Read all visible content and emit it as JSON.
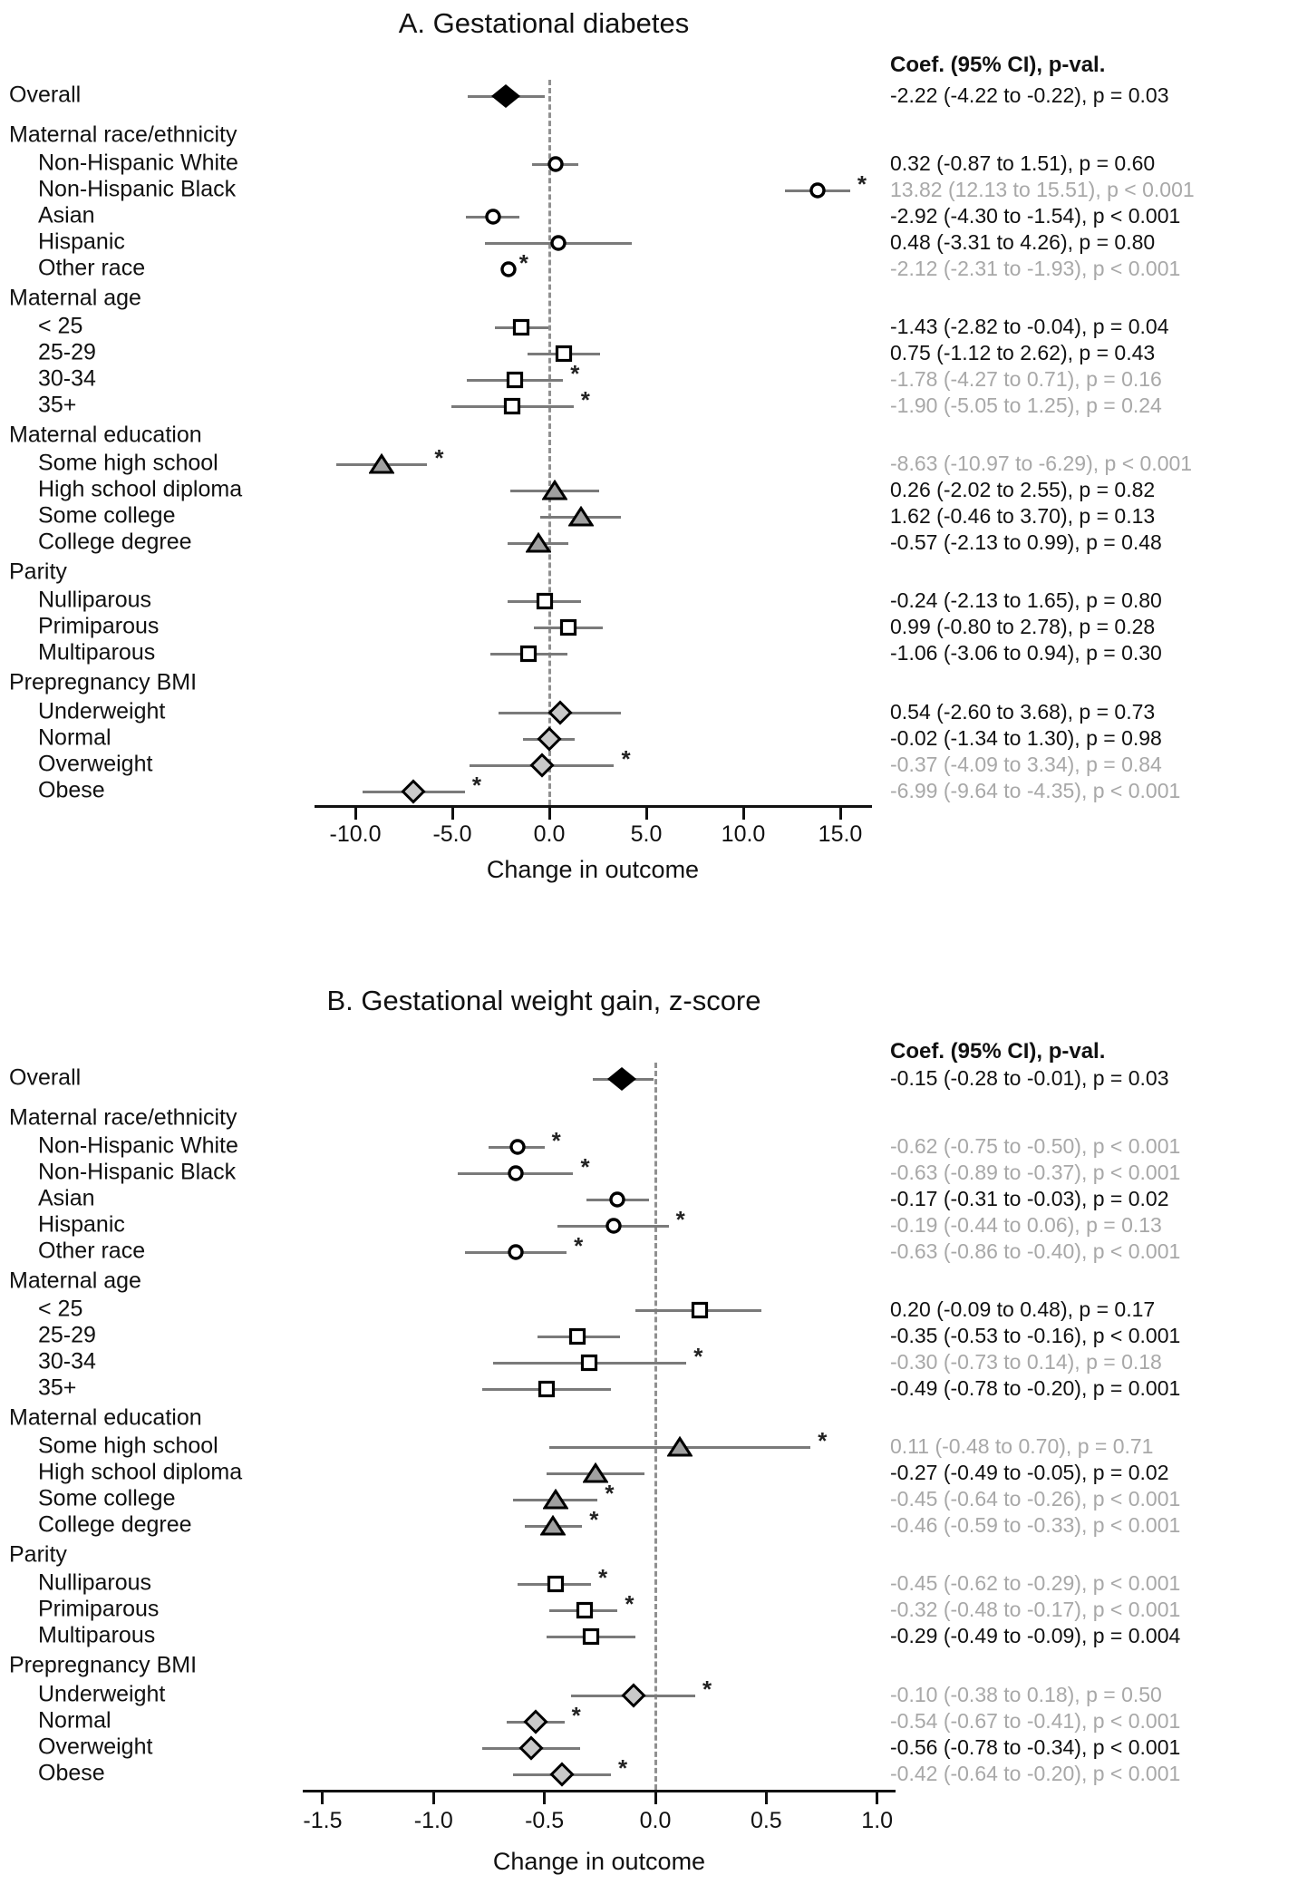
{
  "figure": {
    "background": "#ffffff",
    "colors": {
      "text": "#111111",
      "muted_text": "#a8a8a8",
      "ci_line": "#7a7a7a",
      "marker_stroke": "#000000",
      "circle_fill": "#ffffff",
      "square_fill": "#ffffff",
      "triangle_fill": "#a0a0a0",
      "diamond_fill": "#c9c9c9",
      "overall_diamond_fill": "#000000",
      "zero_line": "#909090",
      "axis": "#111111"
    }
  },
  "chart_data": {
    "type": "scatter",
    "subtype": "forest-plot",
    "legend_position": "none",
    "grid": false,
    "panels": [
      {
        "title": "A. Gestational diabetes",
        "column_header": "Coef. (95% CI), p-val.",
        "xlabel": "Change in outcome",
        "xlim": [
          -14.77,
          16.64
        ],
        "zero_reference": 0,
        "x_ticks": [
          -10,
          -5,
          0,
          5,
          10,
          15
        ],
        "x_tick_labels": [
          "-10.0",
          "-5.0",
          "0.0",
          "5.0",
          "10.0",
          "15.0"
        ],
        "rows": [
          {
            "label": "Overall",
            "kind": "item",
            "indent": 0,
            "marker": "diamond-filled",
            "coef": -2.22,
            "lo": -4.22,
            "hi": -0.22,
            "text": "-2.22 (-4.22 to -0.22), p = 0.03",
            "muted": false,
            "star": false
          },
          {
            "label": "Maternal race/ethnicity",
            "kind": "header"
          },
          {
            "label": "Non-Hispanic White",
            "kind": "item",
            "indent": 1,
            "marker": "circle",
            "coef": 0.32,
            "lo": -0.87,
            "hi": 1.51,
            "text": "0.32 (-0.87 to 1.51), p = 0.60",
            "muted": false,
            "star": false
          },
          {
            "label": "Non-Hispanic Black",
            "kind": "item",
            "indent": 1,
            "marker": "circle",
            "coef": 13.82,
            "lo": 12.13,
            "hi": 15.51,
            "text": "13.82 (12.13 to 15.51), p < 0.001",
            "muted": true,
            "star": true
          },
          {
            "label": "Asian",
            "kind": "item",
            "indent": 1,
            "marker": "circle",
            "coef": -2.92,
            "lo": -4.3,
            "hi": -1.54,
            "text": "-2.92 (-4.30 to -1.54), p < 0.001",
            "muted": false,
            "star": false
          },
          {
            "label": "Hispanic",
            "kind": "item",
            "indent": 1,
            "marker": "circle",
            "coef": 0.48,
            "lo": -3.31,
            "hi": 4.26,
            "text": "0.48 (-3.31 to 4.26), p = 0.80",
            "muted": false,
            "star": false
          },
          {
            "label": "Other race",
            "kind": "item",
            "indent": 1,
            "marker": "circle",
            "coef": -2.12,
            "lo": -2.31,
            "hi": -1.93,
            "text": "-2.12 (-2.31 to -1.93), p < 0.001",
            "muted": true,
            "star": true
          },
          {
            "label": "Maternal age",
            "kind": "header"
          },
          {
            "label": "< 25",
            "kind": "item",
            "indent": 1,
            "marker": "square",
            "coef": -1.43,
            "lo": -2.82,
            "hi": -0.04,
            "text": "-1.43 (-2.82 to -0.04), p = 0.04",
            "muted": false,
            "star": false
          },
          {
            "label": "25-29",
            "kind": "item",
            "indent": 1,
            "marker": "square",
            "coef": 0.75,
            "lo": -1.12,
            "hi": 2.62,
            "text": "0.75 (-1.12 to 2.62), p = 0.43",
            "muted": false,
            "star": false
          },
          {
            "label": "30-34",
            "kind": "item",
            "indent": 1,
            "marker": "square",
            "coef": -1.78,
            "lo": -4.27,
            "hi": 0.71,
            "text": "-1.78 (-4.27 to 0.71), p = 0.16",
            "muted": true,
            "star": true
          },
          {
            "label": "35+",
            "kind": "item",
            "indent": 1,
            "marker": "square",
            "coef": -1.9,
            "lo": -5.05,
            "hi": 1.25,
            "text": "-1.90 (-5.05 to 1.25), p = 0.24",
            "muted": true,
            "star": true
          },
          {
            "label": "Maternal education",
            "kind": "header"
          },
          {
            "label": "Some high school",
            "kind": "item",
            "indent": 1,
            "marker": "triangle",
            "coef": -8.63,
            "lo": -10.97,
            "hi": -6.29,
            "text": "-8.63 (-10.97 to -6.29), p < 0.001",
            "muted": true,
            "star": true
          },
          {
            "label": "High school diploma",
            "kind": "item",
            "indent": 1,
            "marker": "triangle",
            "coef": 0.26,
            "lo": -2.02,
            "hi": 2.55,
            "text": "0.26 (-2.02 to 2.55), p = 0.82",
            "muted": false,
            "star": false
          },
          {
            "label": "Some college",
            "kind": "item",
            "indent": 1,
            "marker": "triangle",
            "coef": 1.62,
            "lo": -0.46,
            "hi": 3.7,
            "text": "1.62 (-0.46 to 3.70), p = 0.13",
            "muted": false,
            "star": false
          },
          {
            "label": "College degree",
            "kind": "item",
            "indent": 1,
            "marker": "triangle",
            "coef": -0.57,
            "lo": -2.13,
            "hi": 0.99,
            "text": "-0.57 (-2.13 to 0.99), p = 0.48",
            "muted": false,
            "star": false
          },
          {
            "label": "Parity",
            "kind": "header"
          },
          {
            "label": "Nulliparous",
            "kind": "item",
            "indent": 1,
            "marker": "square",
            "coef": -0.24,
            "lo": -2.13,
            "hi": 1.65,
            "text": "-0.24 (-2.13 to 1.65), p = 0.80",
            "muted": false,
            "star": false
          },
          {
            "label": "Primiparous",
            "kind": "item",
            "indent": 1,
            "marker": "square",
            "coef": 0.99,
            "lo": -0.8,
            "hi": 2.78,
            "text": "0.99 (-0.80 to 2.78), p = 0.28",
            "muted": false,
            "star": false
          },
          {
            "label": "Multiparous",
            "kind": "item",
            "indent": 1,
            "marker": "square",
            "coef": -1.06,
            "lo": -3.06,
            "hi": 0.94,
            "text": "-1.06 (-3.06 to 0.94), p = 0.30",
            "muted": false,
            "star": false
          },
          {
            "label": "Prepregnancy BMI",
            "kind": "header"
          },
          {
            "label": "Underweight",
            "kind": "item",
            "indent": 1,
            "marker": "diamond",
            "coef": 0.54,
            "lo": -2.6,
            "hi": 3.68,
            "text": "0.54 (-2.60 to 3.68), p = 0.73",
            "muted": false,
            "star": false
          },
          {
            "label": "Normal",
            "kind": "item",
            "indent": 1,
            "marker": "diamond",
            "coef": -0.02,
            "lo": -1.34,
            "hi": 1.3,
            "text": "-0.02 (-1.34 to 1.30), p = 0.98",
            "muted": false,
            "star": false
          },
          {
            "label": "Overweight",
            "kind": "item",
            "indent": 1,
            "marker": "diamond",
            "coef": -0.37,
            "lo": -4.09,
            "hi": 3.34,
            "text": "-0.37 (-4.09 to 3.34), p = 0.84",
            "muted": true,
            "star": true
          },
          {
            "label": "Obese",
            "kind": "item",
            "indent": 1,
            "marker": "diamond",
            "coef": -6.99,
            "lo": -9.64,
            "hi": -4.35,
            "text": "-6.99 (-9.64 to -4.35), p < 0.001",
            "muted": true,
            "star": true
          }
        ]
      },
      {
        "title": "B. Gestational weight gain, z-score",
        "column_header": "Coef. (95% CI), p-val.",
        "xlabel": "Change in outcome",
        "xlim": [
          -1.59,
          1.08
        ],
        "zero_reference": 0,
        "x_ticks": [
          -1.5,
          -1.0,
          -0.5,
          0.0,
          0.5,
          1.0
        ],
        "x_tick_labels": [
          "-1.5",
          "-1.0",
          "-0.5",
          "0.0",
          "0.5",
          "1.0"
        ],
        "rows": [
          {
            "label": "Overall",
            "kind": "item",
            "indent": 0,
            "marker": "diamond-filled",
            "coef": -0.15,
            "lo": -0.28,
            "hi": -0.01,
            "text": "-0.15 (-0.28 to -0.01), p = 0.03",
            "muted": false,
            "star": false
          },
          {
            "label": "Maternal race/ethnicity",
            "kind": "header"
          },
          {
            "label": "Non-Hispanic White",
            "kind": "item",
            "indent": 1,
            "marker": "circle",
            "coef": -0.62,
            "lo": -0.75,
            "hi": -0.5,
            "text": "-0.62 (-0.75 to -0.50), p < 0.001",
            "muted": true,
            "star": true
          },
          {
            "label": "Non-Hispanic Black",
            "kind": "item",
            "indent": 1,
            "marker": "circle",
            "coef": -0.63,
            "lo": -0.89,
            "hi": -0.37,
            "text": "-0.63 (-0.89 to -0.37), p < 0.001",
            "muted": true,
            "star": true
          },
          {
            "label": "Asian",
            "kind": "item",
            "indent": 1,
            "marker": "circle",
            "coef": -0.17,
            "lo": -0.31,
            "hi": -0.03,
            "text": "-0.17 (-0.31 to -0.03), p = 0.02",
            "muted": false,
            "star": false
          },
          {
            "label": "Hispanic",
            "kind": "item",
            "indent": 1,
            "marker": "circle",
            "coef": -0.19,
            "lo": -0.44,
            "hi": 0.06,
            "text": "-0.19 (-0.44 to 0.06), p = 0.13",
            "muted": true,
            "star": true
          },
          {
            "label": "Other race",
            "kind": "item",
            "indent": 1,
            "marker": "circle",
            "coef": -0.63,
            "lo": -0.86,
            "hi": -0.4,
            "text": "-0.63 (-0.86 to -0.40), p < 0.001",
            "muted": true,
            "star": true
          },
          {
            "label": "Maternal age",
            "kind": "header"
          },
          {
            "label": "< 25",
            "kind": "item",
            "indent": 1,
            "marker": "square",
            "coef": 0.2,
            "lo": -0.09,
            "hi": 0.48,
            "text": "0.20 (-0.09 to 0.48), p = 0.17",
            "muted": false,
            "star": false
          },
          {
            "label": "25-29",
            "kind": "item",
            "indent": 1,
            "marker": "square",
            "coef": -0.35,
            "lo": -0.53,
            "hi": -0.16,
            "text": "-0.35 (-0.53 to -0.16), p < 0.001",
            "muted": false,
            "star": false
          },
          {
            "label": "30-34",
            "kind": "item",
            "indent": 1,
            "marker": "square",
            "coef": -0.3,
            "lo": -0.73,
            "hi": 0.14,
            "text": "-0.30 (-0.73 to 0.14), p = 0.18",
            "muted": true,
            "star": true
          },
          {
            "label": "35+",
            "kind": "item",
            "indent": 1,
            "marker": "square",
            "coef": -0.49,
            "lo": -0.78,
            "hi": -0.2,
            "text": "-0.49 (-0.78 to -0.20), p = 0.001",
            "muted": false,
            "star": false
          },
          {
            "label": "Maternal education",
            "kind": "header"
          },
          {
            "label": "Some high school",
            "kind": "item",
            "indent": 1,
            "marker": "triangle",
            "coef": 0.11,
            "lo": -0.48,
            "hi": 0.7,
            "text": "0.11 (-0.48 to 0.70), p = 0.71",
            "muted": true,
            "star": true
          },
          {
            "label": "High school diploma",
            "kind": "item",
            "indent": 1,
            "marker": "triangle",
            "coef": -0.27,
            "lo": -0.49,
            "hi": -0.05,
            "text": "-0.27 (-0.49 to -0.05), p = 0.02",
            "muted": false,
            "star": false
          },
          {
            "label": "Some college",
            "kind": "item",
            "indent": 1,
            "marker": "triangle",
            "coef": -0.45,
            "lo": -0.64,
            "hi": -0.26,
            "text": "-0.45 (-0.64 to -0.26), p < 0.001",
            "muted": true,
            "star": true
          },
          {
            "label": "College degree",
            "kind": "item",
            "indent": 1,
            "marker": "triangle",
            "coef": -0.46,
            "lo": -0.59,
            "hi": -0.33,
            "text": "-0.46 (-0.59 to -0.33), p < 0.001",
            "muted": true,
            "star": true
          },
          {
            "label": "Parity",
            "kind": "header"
          },
          {
            "label": "Nulliparous",
            "kind": "item",
            "indent": 1,
            "marker": "square",
            "coef": -0.45,
            "lo": -0.62,
            "hi": -0.29,
            "text": "-0.45 (-0.62 to -0.29), p < 0.001",
            "muted": true,
            "star": true
          },
          {
            "label": "Primiparous",
            "kind": "item",
            "indent": 1,
            "marker": "square",
            "coef": -0.32,
            "lo": -0.48,
            "hi": -0.17,
            "text": "-0.32 (-0.48 to -0.17), p < 0.001",
            "muted": true,
            "star": true
          },
          {
            "label": "Multiparous",
            "kind": "item",
            "indent": 1,
            "marker": "square",
            "coef": -0.29,
            "lo": -0.49,
            "hi": -0.09,
            "text": "-0.29 (-0.49 to -0.09), p = 0.004",
            "muted": false,
            "star": false
          },
          {
            "label": "Prepregnancy BMI",
            "kind": "header"
          },
          {
            "label": "Underweight",
            "kind": "item",
            "indent": 1,
            "marker": "diamond",
            "coef": -0.1,
            "lo": -0.38,
            "hi": 0.18,
            "text": "-0.10 (-0.38 to 0.18), p = 0.50",
            "muted": true,
            "star": true
          },
          {
            "label": "Normal",
            "kind": "item",
            "indent": 1,
            "marker": "diamond",
            "coef": -0.54,
            "lo": -0.67,
            "hi": -0.41,
            "text": "-0.54 (-0.67 to -0.41), p < 0.001",
            "muted": true,
            "star": true
          },
          {
            "label": "Overweight",
            "kind": "item",
            "indent": 1,
            "marker": "diamond",
            "coef": -0.56,
            "lo": -0.78,
            "hi": -0.34,
            "text": "-0.56 (-0.78 to -0.34), p < 0.001",
            "muted": false,
            "star": false
          },
          {
            "label": "Obese",
            "kind": "item",
            "indent": 1,
            "marker": "diamond",
            "coef": -0.42,
            "lo": -0.64,
            "hi": -0.2,
            "text": "-0.42 (-0.64 to -0.20), p < 0.001",
            "muted": true,
            "star": true
          }
        ]
      }
    ]
  }
}
